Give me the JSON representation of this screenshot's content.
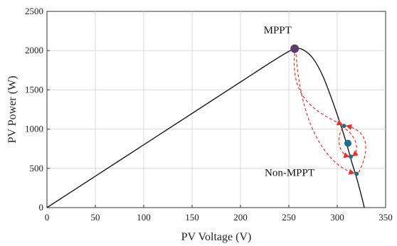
{
  "chart_data": {
    "type": "line",
    "title": "",
    "xlabel": "PV Voltage (V)",
    "ylabel": "PV Power (W)",
    "xlim": [
      0,
      350
    ],
    "ylim": [
      0,
      2500
    ],
    "xticks": [
      0,
      50,
      100,
      150,
      200,
      250,
      300,
      350
    ],
    "yticks": [
      0,
      500,
      1000,
      1500,
      2000,
      2500
    ],
    "grid": true,
    "colors": {
      "curve": "#1a1a1a",
      "mppt_point": "#5a3d6e",
      "non_mppt_point": "#1f6e8c",
      "oscillation": "#e8302a"
    },
    "series": [
      {
        "x": [
          0,
          50,
          100,
          150,
          200,
          230,
          250,
          258,
          265,
          275,
          285,
          295,
          305,
          310,
          315,
          320,
          325,
          328
        ],
        "y": [
          0,
          400,
          800,
          1200,
          1600,
          1840,
          1990,
          2025,
          2010,
          1900,
          1680,
          1360,
          1000,
          800,
          580,
          380,
          150,
          0
        ]
      }
    ],
    "points": {
      "mppt": {
        "x": 256,
        "y": 2025
      },
      "non_mppt": [
        {
          "x": 307,
          "y": 1040
        },
        {
          "x": 311,
          "y": 820
        },
        {
          "x": 314,
          "y": 650
        },
        {
          "x": 320,
          "y": 430
        }
      ]
    },
    "annotations": [
      {
        "text": "MPPT",
        "x": 224,
        "y": 2220
      },
      {
        "text": "Non-MPPT",
        "x": 225,
        "y": 405
      }
    ]
  }
}
